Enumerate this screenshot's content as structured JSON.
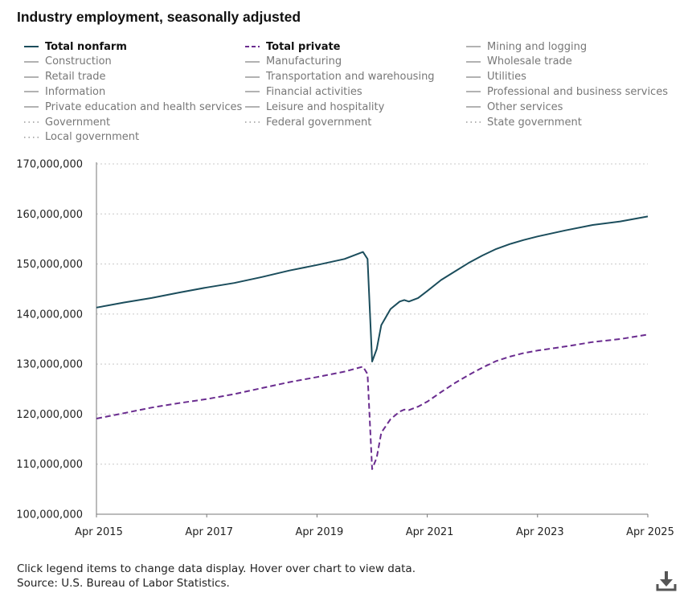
{
  "page": {
    "title": "Industry employment, seasonally adjusted",
    "instructions": "Click legend items to change data display. Hover over chart to view data.",
    "source": "Source: U.S. Bureau of Labor Statistics."
  },
  "legend": [
    {
      "label": "Total nonfarm",
      "style": "solid",
      "color": "#1b4d5c",
      "active": true
    },
    {
      "label": "Total private",
      "style": "dashed",
      "color": "#6a2c8f",
      "active": true
    },
    {
      "label": "Mining and logging",
      "style": "solid",
      "color": "#999999",
      "active": false
    },
    {
      "label": "Construction",
      "style": "solid",
      "color": "#999999",
      "active": false
    },
    {
      "label": "Manufacturing",
      "style": "solid",
      "color": "#999999",
      "active": false
    },
    {
      "label": "Wholesale trade",
      "style": "solid",
      "color": "#999999",
      "active": false
    },
    {
      "label": "Retail trade",
      "style": "solid",
      "color": "#999999",
      "active": false
    },
    {
      "label": "Transportation and warehousing",
      "style": "solid",
      "color": "#999999",
      "active": false
    },
    {
      "label": "Utilities",
      "style": "solid",
      "color": "#999999",
      "active": false
    },
    {
      "label": "Information",
      "style": "solid",
      "color": "#999999",
      "active": false
    },
    {
      "label": "Financial activities",
      "style": "solid",
      "color": "#999999",
      "active": false
    },
    {
      "label": "Professional and business services",
      "style": "solid",
      "color": "#999999",
      "active": false
    },
    {
      "label": "Private education and health services",
      "style": "solid",
      "color": "#999999",
      "active": false
    },
    {
      "label": "Leisure and hospitality",
      "style": "solid",
      "color": "#999999",
      "active": false
    },
    {
      "label": "Other services",
      "style": "solid",
      "color": "#999999",
      "active": false
    },
    {
      "label": "Government",
      "style": "dotted",
      "color": "#999999",
      "active": false
    },
    {
      "label": "Federal government",
      "style": "dotted",
      "color": "#999999",
      "active": false
    },
    {
      "label": "State government",
      "style": "dotted",
      "color": "#999999",
      "active": false
    },
    {
      "label": "Local government",
      "style": "dotted",
      "color": "#999999",
      "active": false
    }
  ],
  "icons": {
    "download": "download-icon"
  },
  "chart_data": {
    "type": "line",
    "title": "Industry employment, seasonally adjusted",
    "xlabel": "",
    "ylabel": "",
    "ylim": [
      100000000,
      170000000
    ],
    "yticks": [
      100000000,
      110000000,
      120000000,
      130000000,
      140000000,
      150000000,
      160000000,
      170000000
    ],
    "ytick_labels": [
      "100,000,000",
      "110,000,000",
      "120,000,000",
      "130,000,000",
      "140,000,000",
      "150,000,000",
      "160,000,000",
      "170,000,000"
    ],
    "xlim": [
      "2015-04",
      "2025-04"
    ],
    "xticks": [
      "2015-04",
      "2017-04",
      "2019-04",
      "2021-04",
      "2023-04",
      "2025-04"
    ],
    "xtick_labels": [
      "Apr 2015",
      "Apr 2017",
      "Apr 2019",
      "Apr 2021",
      "Apr 2023",
      "Apr 2025"
    ],
    "grid": "horizontal dotted",
    "series": [
      {
        "name": "Total nonfarm",
        "style": "solid",
        "color": "#1b4d5c",
        "points": [
          [
            "2015-04",
            141300000
          ],
          [
            "2015-10",
            142300000
          ],
          [
            "2016-04",
            143200000
          ],
          [
            "2016-10",
            144300000
          ],
          [
            "2017-04",
            145300000
          ],
          [
            "2017-10",
            146200000
          ],
          [
            "2018-04",
            147400000
          ],
          [
            "2018-10",
            148700000
          ],
          [
            "2019-04",
            149800000
          ],
          [
            "2019-10",
            151000000
          ],
          [
            "2020-02",
            152400000
          ],
          [
            "2020-03",
            151000000
          ],
          [
            "2020-04",
            130500000
          ],
          [
            "2020-05",
            133000000
          ],
          [
            "2020-06",
            137800000
          ],
          [
            "2020-08",
            141000000
          ],
          [
            "2020-10",
            142500000
          ],
          [
            "2020-11",
            142800000
          ],
          [
            "2020-12",
            142500000
          ],
          [
            "2021-02",
            143200000
          ],
          [
            "2021-04",
            144600000
          ],
          [
            "2021-07",
            146800000
          ],
          [
            "2021-10",
            148500000
          ],
          [
            "2022-01",
            150200000
          ],
          [
            "2022-04",
            151700000
          ],
          [
            "2022-07",
            153000000
          ],
          [
            "2022-10",
            154000000
          ],
          [
            "2023-01",
            154800000
          ],
          [
            "2023-04",
            155500000
          ],
          [
            "2023-10",
            156700000
          ],
          [
            "2024-04",
            157800000
          ],
          [
            "2024-10",
            158500000
          ],
          [
            "2025-04",
            159500000
          ]
        ]
      },
      {
        "name": "Total private",
        "style": "dashed",
        "color": "#6a2c8f",
        "points": [
          [
            "2015-04",
            119100000
          ],
          [
            "2015-10",
            120200000
          ],
          [
            "2016-04",
            121300000
          ],
          [
            "2016-10",
            122200000
          ],
          [
            "2017-04",
            123000000
          ],
          [
            "2017-10",
            124000000
          ],
          [
            "2018-04",
            125200000
          ],
          [
            "2018-10",
            126400000
          ],
          [
            "2019-04",
            127400000
          ],
          [
            "2019-10",
            128500000
          ],
          [
            "2020-02",
            129500000
          ],
          [
            "2020-03",
            128000000
          ],
          [
            "2020-04",
            109000000
          ],
          [
            "2020-05",
            111300000
          ],
          [
            "2020-06",
            116300000
          ],
          [
            "2020-08",
            119000000
          ],
          [
            "2020-10",
            120500000
          ],
          [
            "2020-11",
            120900000
          ],
          [
            "2020-12",
            120800000
          ],
          [
            "2021-02",
            121500000
          ],
          [
            "2021-04",
            122500000
          ],
          [
            "2021-07",
            124400000
          ],
          [
            "2021-10",
            126200000
          ],
          [
            "2022-01",
            127800000
          ],
          [
            "2022-04",
            129300000
          ],
          [
            "2022-07",
            130600000
          ],
          [
            "2022-10",
            131500000
          ],
          [
            "2023-01",
            132200000
          ],
          [
            "2023-04",
            132700000
          ],
          [
            "2023-10",
            133500000
          ],
          [
            "2024-04",
            134400000
          ],
          [
            "2024-10",
            135000000
          ],
          [
            "2025-04",
            135900000
          ]
        ]
      }
    ]
  }
}
